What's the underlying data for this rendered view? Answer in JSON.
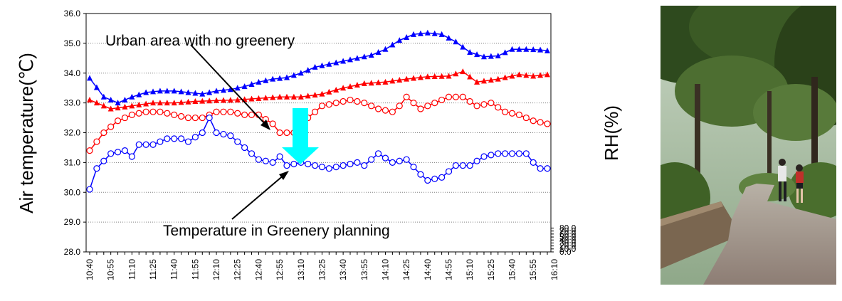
{
  "chart_data": {
    "type": "line",
    "title": "",
    "xlabel": "",
    "ylabel": "Air temperature(℃)",
    "y2label": "RH(%)",
    "ylim": [
      28.0,
      36.0
    ],
    "y2lim": [
      0.0,
      800.0
    ],
    "yticks": [
      "28.0",
      "29.0",
      "30.0",
      "31.0",
      "32.0",
      "33.0",
      "34.0",
      "35.0",
      "36.0"
    ],
    "y2ticks": [
      "0.0",
      "10.0",
      "20.0",
      "30.0",
      "40.0",
      "50.0",
      "60.0",
      "70.0",
      "80.0"
    ],
    "grid": true,
    "categories": [
      "10:40",
      "10:55",
      "11:10",
      "11:25",
      "11:40",
      "11:55",
      "12:10",
      "12:25",
      "12:40",
      "12:55",
      "13:10",
      "13:25",
      "13:40",
      "13:55",
      "14:10",
      "14:25",
      "14:40",
      "14:55",
      "15:10",
      "15:25",
      "15:40",
      "15:55",
      "16:10"
    ],
    "x_count": 66,
    "series": [
      {
        "axis": "right",
        "marker": "triangle",
        "color": "#0000ff",
        "points": [
          [
            0,
            583
          ],
          [
            2,
            520
          ],
          [
            4,
            500
          ],
          [
            6,
            520
          ],
          [
            8,
            535
          ],
          [
            10,
            540
          ],
          [
            12,
            540
          ],
          [
            14,
            535
          ],
          [
            16,
            530
          ],
          [
            18,
            540
          ],
          [
            20,
            545
          ],
          [
            22,
            555
          ],
          [
            24,
            570
          ],
          [
            26,
            580
          ],
          [
            28,
            585
          ],
          [
            30,
            600
          ],
          [
            32,
            620
          ],
          [
            34,
            630
          ],
          [
            36,
            640
          ],
          [
            38,
            650
          ],
          [
            40,
            660
          ],
          [
            42,
            680
          ],
          [
            44,
            710
          ],
          [
            46,
            730
          ],
          [
            48,
            735
          ],
          [
            50,
            730
          ],
          [
            52,
            705
          ],
          [
            54,
            670
          ],
          [
            56,
            655
          ],
          [
            58,
            658
          ],
          [
            60,
            680
          ],
          [
            62,
            680
          ],
          [
            64,
            678
          ],
          [
            65,
            675
          ]
        ]
      },
      {
        "axis": "right",
        "marker": "triangle",
        "color": "#ff0000",
        "points": [
          [
            0,
            510
          ],
          [
            3,
            480
          ],
          [
            6,
            490
          ],
          [
            9,
            500
          ],
          [
            12,
            500
          ],
          [
            15,
            505
          ],
          [
            18,
            508
          ],
          [
            21,
            510
          ],
          [
            24,
            515
          ],
          [
            27,
            520
          ],
          [
            30,
            520
          ],
          [
            33,
            530
          ],
          [
            36,
            550
          ],
          [
            39,
            565
          ],
          [
            42,
            570
          ],
          [
            45,
            580
          ],
          [
            48,
            588
          ],
          [
            51,
            590
          ],
          [
            53,
            605
          ],
          [
            55,
            570
          ],
          [
            58,
            580
          ],
          [
            61,
            595
          ],
          [
            63,
            590
          ],
          [
            65,
            595
          ]
        ]
      },
      {
        "axis": "left",
        "marker": "circle",
        "color": "#ff0000",
        "points": [
          [
            0,
            31.4
          ],
          [
            2,
            32.0
          ],
          [
            4,
            32.4
          ],
          [
            6,
            32.6
          ],
          [
            8,
            32.7
          ],
          [
            10,
            32.7
          ],
          [
            12,
            32.6
          ],
          [
            14,
            32.5
          ],
          [
            16,
            32.5
          ],
          [
            18,
            32.7
          ],
          [
            20,
            32.7
          ],
          [
            22,
            32.6
          ],
          [
            24,
            32.6
          ],
          [
            26,
            32.3
          ],
          [
            27,
            32.0
          ],
          [
            29,
            32.0
          ],
          [
            31,
            32.5
          ],
          [
            33,
            32.9
          ],
          [
            35,
            33.0
          ],
          [
            37,
            33.1
          ],
          [
            39,
            33.0
          ],
          [
            41,
            32.8
          ],
          [
            43,
            32.7
          ],
          [
            44,
            32.9
          ],
          [
            45,
            33.2
          ],
          [
            47,
            32.8
          ],
          [
            49,
            33.0
          ],
          [
            51,
            33.2
          ],
          [
            53,
            33.2
          ],
          [
            55,
            32.9
          ],
          [
            57,
            33.0
          ],
          [
            59,
            32.7
          ],
          [
            61,
            32.6
          ],
          [
            63,
            32.4
          ],
          [
            65,
            32.3
          ]
        ]
      },
      {
        "axis": "left",
        "marker": "circle",
        "color": "#0000ff",
        "points": [
          [
            0,
            30.1
          ],
          [
            1,
            30.8
          ],
          [
            3,
            31.3
          ],
          [
            5,
            31.4
          ],
          [
            6,
            31.2
          ],
          [
            7,
            31.6
          ],
          [
            9,
            31.6
          ],
          [
            11,
            31.8
          ],
          [
            13,
            31.8
          ],
          [
            14,
            31.7
          ],
          [
            16,
            32.0
          ],
          [
            17,
            32.5
          ],
          [
            18,
            32.0
          ],
          [
            20,
            31.9
          ],
          [
            22,
            31.5
          ],
          [
            24,
            31.1
          ],
          [
            26,
            31.0
          ],
          [
            27,
            31.2
          ],
          [
            28,
            30.9
          ],
          [
            30,
            31.0
          ],
          [
            32,
            30.9
          ],
          [
            34,
            30.8
          ],
          [
            36,
            30.9
          ],
          [
            38,
            31.0
          ],
          [
            39,
            30.9
          ],
          [
            41,
            31.3
          ],
          [
            43,
            31.0
          ],
          [
            45,
            31.1
          ],
          [
            47,
            30.6
          ],
          [
            48,
            30.4
          ],
          [
            50,
            30.5
          ],
          [
            52,
            30.9
          ],
          [
            54,
            30.9
          ],
          [
            56,
            31.2
          ],
          [
            58,
            31.3
          ],
          [
            60,
            31.3
          ],
          [
            62,
            31.3
          ],
          [
            63,
            31.0
          ],
          [
            64,
            30.8
          ],
          [
            65,
            30.8
          ]
        ]
      }
    ],
    "annotations": [
      {
        "text": "Urban area with no greenery"
      },
      {
        "text": "Temperature in Greenery planning"
      }
    ]
  },
  "photo": {
    "icon": "greenery-walkway-photo"
  }
}
